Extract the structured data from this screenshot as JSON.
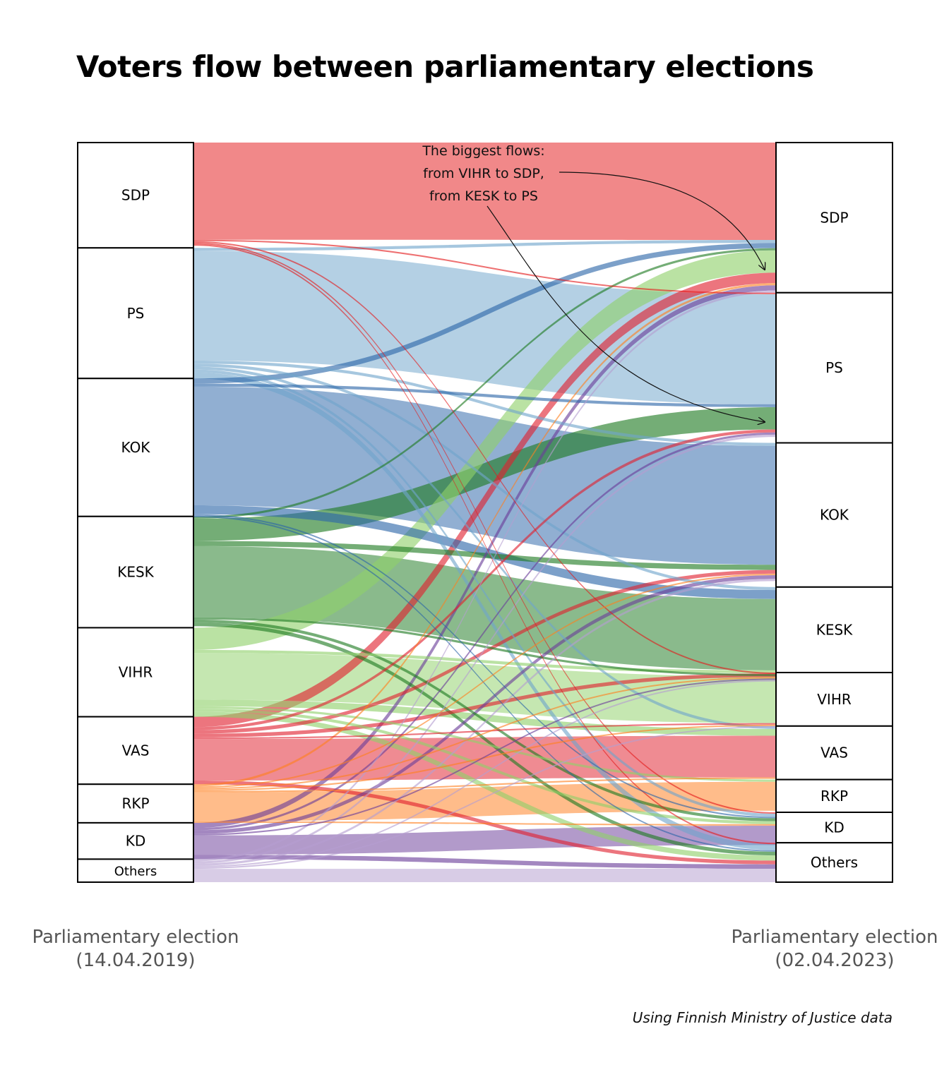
{
  "title": "Voters flow between parliamentary elections",
  "annotation": {
    "lines": [
      "The biggest flows:",
      "from VIHR to SDP,",
      "from KESK to PS"
    ]
  },
  "axes": {
    "left_label": [
      "Parliamentary election",
      "(14.04.2019)"
    ],
    "right_label": [
      "Parliamentary election",
      "(02.04.2023)"
    ]
  },
  "source": "Using Finnish Ministry of Justice data",
  "chart_data": {
    "type": "sankey",
    "nodes_2019": [
      {
        "name": "SDP",
        "share": 14.2
      },
      {
        "name": "PS",
        "share": 17.6
      },
      {
        "name": "KOK",
        "share": 18.6
      },
      {
        "name": "KESK",
        "share": 15.0
      },
      {
        "name": "VIHR",
        "share": 12.0
      },
      {
        "name": "VAS",
        "share": 9.1
      },
      {
        "name": "RKP",
        "share": 5.2
      },
      {
        "name": "KD",
        "share": 4.9
      },
      {
        "name": "Others",
        "share": 3.1
      }
    ],
    "nodes_2023": [
      {
        "name": "SDP",
        "share": 20.2
      },
      {
        "name": "PS",
        "share": 20.2
      },
      {
        "name": "KOK",
        "share": 19.4
      },
      {
        "name": "KESK",
        "share": 11.5
      },
      {
        "name": "VIHR",
        "share": 7.2
      },
      {
        "name": "VAS",
        "share": 7.2
      },
      {
        "name": "RKP",
        "share": 4.4
      },
      {
        "name": "KD",
        "share": 4.1
      },
      {
        "name": "Others",
        "share": 5.3
      }
    ],
    "colors": {
      "SDP": "#e41a1c",
      "PS": "#6fa4cc",
      "KOK": "#2c66a8",
      "KESK": "#1f7a22",
      "VIHR": "#8fd16a",
      "VAS": "#e0202e",
      "RKP": "#ff7f1e",
      "KD": "#6b3d9a",
      "Others": "#b49ed0"
    },
    "flows": [
      {
        "from": "SDP",
        "to": "SDP",
        "value": 13.1
      },
      {
        "from": "SDP",
        "to": "PS",
        "value": 0.2
      },
      {
        "from": "SDP",
        "to": "VIHR",
        "value": 0.2
      },
      {
        "from": "SDP",
        "to": "KD",
        "value": 0.2
      },
      {
        "from": "SDP",
        "to": "Others",
        "value": 0.2
      },
      {
        "from": "PS",
        "to": "SDP",
        "value": 0.4
      },
      {
        "from": "PS",
        "to": "PS",
        "value": 14.8
      },
      {
        "from": "PS",
        "to": "KOK",
        "value": 0.4
      },
      {
        "from": "PS",
        "to": "KESK",
        "value": 0.4
      },
      {
        "from": "PS",
        "to": "VAS",
        "value": 0.4
      },
      {
        "from": "PS",
        "to": "KD",
        "value": 0.4
      },
      {
        "from": "PS",
        "to": "Others",
        "value": 0.8
      },
      {
        "from": "KOK",
        "to": "SDP",
        "value": 0.7
      },
      {
        "from": "KOK",
        "to": "PS",
        "value": 0.4
      },
      {
        "from": "KOK",
        "to": "KOK",
        "value": 16.0
      },
      {
        "from": "KOK",
        "to": "KESK",
        "value": 1.2
      },
      {
        "from": "KOK",
        "to": "KD",
        "value": 0.2
      },
      {
        "from": "KOK",
        "to": "Others",
        "value": 0.2
      },
      {
        "from": "KESK",
        "to": "SDP",
        "value": 0.3
      },
      {
        "from": "KESK",
        "to": "PS",
        "value": 3.0
      },
      {
        "from": "KESK",
        "to": "KOK",
        "value": 0.7
      },
      {
        "from": "KESK",
        "to": "KESK",
        "value": 9.6
      },
      {
        "from": "KESK",
        "to": "VIHR",
        "value": 0.3
      },
      {
        "from": "KESK",
        "to": "KD",
        "value": 0.4
      },
      {
        "from": "KESK",
        "to": "Others",
        "value": 0.5
      },
      {
        "from": "VIHR",
        "to": "SDP",
        "value": 3.0
      },
      {
        "from": "VIHR",
        "to": "KESK",
        "value": 0.4
      },
      {
        "from": "VIHR",
        "to": "VIHR",
        "value": 6.3
      },
      {
        "from": "VIHR",
        "to": "VAS",
        "value": 0.9
      },
      {
        "from": "VIHR",
        "to": "RKP",
        "value": 0.3
      },
      {
        "from": "VIHR",
        "to": "KD",
        "value": 0.4
      },
      {
        "from": "VIHR",
        "to": "Others",
        "value": 0.7
      },
      {
        "from": "VAS",
        "to": "SDP",
        "value": 1.4
      },
      {
        "from": "VAS",
        "to": "PS",
        "value": 0.4
      },
      {
        "from": "VAS",
        "to": "KOK",
        "value": 0.5
      },
      {
        "from": "VAS",
        "to": "KESK",
        "value": 0.5
      },
      {
        "from": "VAS",
        "to": "VIHR",
        "value": 0.2
      },
      {
        "from": "VAS",
        "to": "VAS",
        "value": 5.6
      },
      {
        "from": "VAS",
        "to": "Others",
        "value": 0.5
      },
      {
        "from": "RKP",
        "to": "SDP",
        "value": 0.3
      },
      {
        "from": "RKP",
        "to": "KOK",
        "value": 0.2
      },
      {
        "from": "RKP",
        "to": "KESK",
        "value": 0.2
      },
      {
        "from": "RKP",
        "to": "VIHR",
        "value": 0.2
      },
      {
        "from": "RKP",
        "to": "VAS",
        "value": 0.2
      },
      {
        "from": "RKP",
        "to": "RKP",
        "value": 3.9
      },
      {
        "from": "RKP",
        "to": "KD",
        "value": 0.2
      },
      {
        "from": "KD",
        "to": "SDP",
        "value": 0.7
      },
      {
        "from": "KD",
        "to": "PS",
        "value": 0.3
      },
      {
        "from": "KD",
        "to": "KOK",
        "value": 0.5
      },
      {
        "from": "KD",
        "to": "KESK",
        "value": 0.2
      },
      {
        "from": "KD",
        "to": "KD",
        "value": 2.6
      },
      {
        "from": "KD",
        "to": "Others",
        "value": 0.6
      },
      {
        "from": "Others",
        "to": "SDP",
        "value": 0.3
      },
      {
        "from": "Others",
        "to": "PS",
        "value": 0.3
      },
      {
        "from": "Others",
        "to": "KOK",
        "value": 0.3
      },
      {
        "from": "Others",
        "to": "KESK",
        "value": 0.2
      },
      {
        "from": "Others",
        "to": "VIHR",
        "value": 0.2
      },
      {
        "from": "Others",
        "to": "Others",
        "value": 1.8
      }
    ]
  }
}
